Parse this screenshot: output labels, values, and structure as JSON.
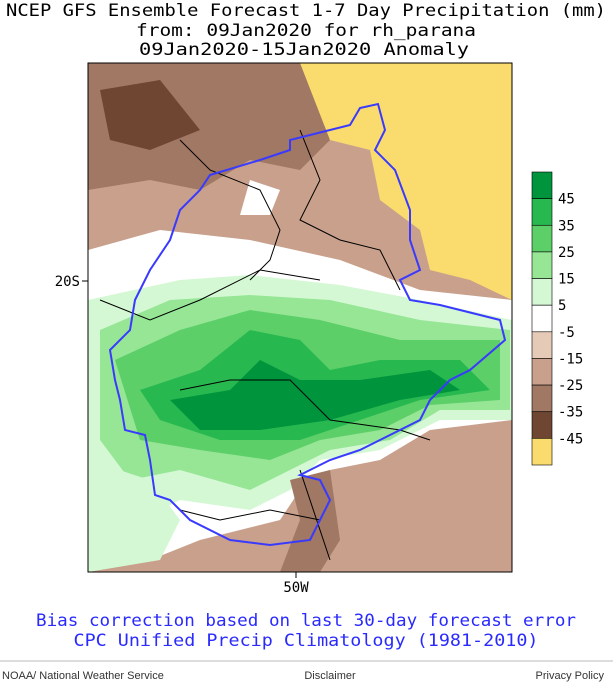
{
  "header": {
    "title": "NCEP GFS Ensemble Forecast 1-7 Day Precipitation (mm)",
    "subtitle": "from: 09Jan2020  for rh_parana",
    "period": "09Jan2020-15Jan2020 Anomaly"
  },
  "map": {
    "lat_label": "20S",
    "lon_label": "50W"
  },
  "colorbar": {
    "labels": [
      "45",
      "35",
      "25",
      "15",
      "5",
      "-5",
      "-15",
      "-25",
      "-35",
      "-45"
    ],
    "colors": [
      "#00943c",
      "#28b850",
      "#5ccf68",
      "#96e696",
      "#d4f8d4",
      "#ffffff",
      "#e6cab8",
      "#c8a08c",
      "#a07864",
      "#6e4632",
      "#fadc6e"
    ]
  },
  "notes": [
    "Bias correction based on last 30-day forecast error",
    "CPC Unified Precip Climatology (1981-2010)"
  ],
  "footer": {
    "left": "NOAA/ National Weather Service",
    "center": "Disclaimer",
    "right": "Privacy Policy"
  }
}
